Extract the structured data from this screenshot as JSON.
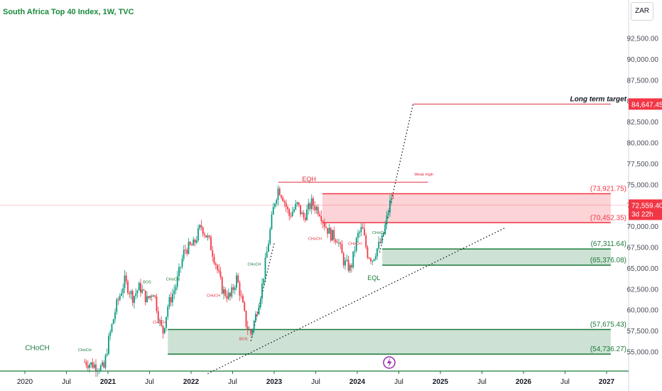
{
  "header": {
    "title": "South Africa Top 40 Index, 1W, TVC",
    "currency": "ZAR"
  },
  "chart_data": {
    "type": "candlestick",
    "title": "South Africa Top 40 Index, 1W, TVC",
    "currency": "ZAR",
    "ylim": [
      52500,
      95000
    ],
    "y_ticks": [
      "92,500.00",
      "90,000.00",
      "87,500.00",
      "85,000.00",
      "82,500.00",
      "80,000.00",
      "77,500.00",
      "75,000.00",
      "72,500.00",
      "70,000.00",
      "67,500.00",
      "65,000.00",
      "62,500.00",
      "60,000.00",
      "57,500.00",
      "55,000.00"
    ],
    "y_tick_values": [
      92500,
      90000,
      87500,
      85000,
      82500,
      80000,
      77500,
      75000,
      72500,
      70000,
      67500,
      65000,
      62500,
      60000,
      57500,
      55000
    ],
    "x_ticks": [
      "2020",
      "Jul",
      "2021",
      "Jul",
      "2022",
      "Jul",
      "2023",
      "Jul",
      "2024",
      "Jul",
      "2025",
      "Jul",
      "2026",
      "Jul",
      "2027"
    ],
    "x_tick_values": [
      2020.0,
      2020.5,
      2021.0,
      2021.5,
      2022.0,
      2022.5,
      2023.0,
      2023.5,
      2024.0,
      2024.5,
      2025.0,
      2025.5,
      2026.0,
      2026.5,
      2027.0
    ],
    "bold_ticks": [
      "2021",
      "2022",
      "2023",
      "2024",
      "2025",
      "2026",
      "2027"
    ],
    "last_price": {
      "value": 72559.4,
      "label": "72,559.40",
      "countdown": "3d 22h"
    },
    "target": {
      "value": 84647.45,
      "label": "84,647.45",
      "text": "Long term target"
    },
    "zones": [
      {
        "name": "supply",
        "from": 2023.58,
        "to": 2027.05,
        "top": 73921.75,
        "bottom": 70452.35,
        "top_label": "(73,921.75)",
        "bottom_label": "(70,452.35)",
        "color": "#f23645"
      },
      {
        "name": "demand-upper",
        "from": 2024.3,
        "to": 2027.05,
        "top": 67311.64,
        "bottom": 65376.08,
        "top_label": "(67,311.64)",
        "bottom_label": "(65,376.08)",
        "color": "#1b7a3a"
      },
      {
        "name": "demand-lower",
        "from": 2021.72,
        "to": 2027.05,
        "top": 57675.43,
        "bottom": 54736.27,
        "top_label": "(57,675.43)",
        "bottom_label": "(54,736.27)",
        "color": "#1b7a3a"
      }
    ],
    "annotations": [
      {
        "text": "EQH",
        "x": 2023.42,
        "y": 75400,
        "color": "#e03040"
      },
      {
        "text": "Weak High",
        "x": 2024.8,
        "y": 76100,
        "color": "#e03040"
      },
      {
        "text": "EQL",
        "x": 2024.2,
        "y": 63600,
        "color": "#1b7a3a"
      },
      {
        "text": "CHoCH",
        "x": 2020.15,
        "y": 55200,
        "color": "#1b7a3a"
      },
      {
        "text": "CHoCH",
        "x": 2020.72,
        "y": 55100,
        "color": "#1b7a3a"
      },
      {
        "text": "BOS",
        "x": 2021.47,
        "y": 63200,
        "color": "#1b7a3a"
      },
      {
        "text": "CHoCH",
        "x": 2021.78,
        "y": 63550,
        "color": "#1b7a3a"
      },
      {
        "text": "CHoCH",
        "x": 2022.76,
        "y": 65350,
        "color": "#1b7a3a"
      },
      {
        "text": "CHoCH",
        "x": 2023.97,
        "y": 67800,
        "color": "#e03040"
      },
      {
        "text": "CHoCH",
        "x": 2024.26,
        "y": 69100,
        "color": "#1b7a3a"
      },
      {
        "text": "CHoCH",
        "x": 2021.62,
        "y": 58400,
        "color": "#e03040"
      },
      {
        "text": "CHoCH",
        "x": 2022.27,
        "y": 61600,
        "color": "#e03040"
      },
      {
        "text": "BOS",
        "x": 2022.63,
        "y": 56400,
        "color": "#e03040"
      },
      {
        "text": "CHoCH",
        "x": 2023.49,
        "y": 68400,
        "color": "#e03040"
      }
    ],
    "trendlines": [
      {
        "name": "rising-support",
        "x1": 2022.2,
        "y1": 52400,
        "x2": 2025.77,
        "y2": 69800
      },
      {
        "name": "projection",
        "x1": 2024.27,
        "y1": 66900,
        "x2": 2024.67,
        "y2": 84600
      },
      {
        "name": "early-support",
        "x1": 2022.72,
        "y1": 56300,
        "x2": 2023.0,
        "y2": 68000
      }
    ],
    "levels": [
      {
        "name": "eqh-line",
        "from": 2023.05,
        "to": 2024.85,
        "y": 75300,
        "color": "#e03040"
      },
      {
        "name": "target-line",
        "from": 2024.67,
        "to": 2027.05,
        "y": 84647.45,
        "color": "#e03040"
      }
    ],
    "price_path": [
      [
        2020.72,
        53800
      ],
      [
        2020.95,
        53000
      ],
      [
        2021.0,
        56000
      ],
      [
        2021.1,
        60500
      ],
      [
        2021.2,
        63500
      ],
      [
        2021.3,
        61500
      ],
      [
        2021.38,
        62800
      ],
      [
        2021.47,
        61200
      ],
      [
        2021.55,
        62300
      ],
      [
        2021.62,
        58600
      ],
      [
        2021.66,
        57300
      ],
      [
        2021.72,
        60500
      ],
      [
        2021.82,
        63000
      ],
      [
        2021.92,
        67200
      ],
      [
        2022.03,
        67800
      ],
      [
        2022.12,
        70100
      ],
      [
        2022.22,
        68200
      ],
      [
        2022.3,
        65500
      ],
      [
        2022.38,
        62300
      ],
      [
        2022.47,
        61500
      ],
      [
        2022.55,
        63900
      ],
      [
        2022.62,
        60600
      ],
      [
        2022.67,
        58000
      ],
      [
        2022.72,
        57200
      ],
      [
        2022.78,
        59400
      ],
      [
        2022.85,
        62600
      ],
      [
        2022.93,
        68100
      ],
      [
        2023.0,
        72800
      ],
      [
        2023.05,
        74600
      ],
      [
        2023.1,
        73700
      ],
      [
        2023.18,
        71300
      ],
      [
        2023.28,
        72600
      ],
      [
        2023.35,
        71000
      ],
      [
        2023.45,
        72800
      ],
      [
        2023.55,
        71800
      ],
      [
        2023.6,
        70400
      ],
      [
        2023.68,
        69000
      ],
      [
        2023.76,
        68600
      ],
      [
        2023.84,
        65700
      ],
      [
        2023.92,
        64900
      ],
      [
        2024.0,
        68800
      ],
      [
        2024.06,
        69800
      ],
      [
        2024.12,
        66800
      ],
      [
        2024.18,
        66100
      ],
      [
        2024.23,
        67200
      ],
      [
        2024.3,
        68400
      ],
      [
        2024.36,
        71200
      ],
      [
        2024.41,
        73600
      ],
      [
        2024.45,
        72559
      ]
    ]
  }
}
